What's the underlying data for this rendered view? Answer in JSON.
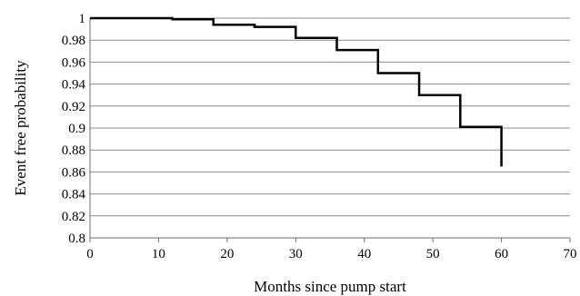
{
  "chart_data": {
    "type": "line",
    "step": true,
    "title": "",
    "xlabel": "Months since pump start",
    "ylabel": "Event free probability",
    "xlim": [
      0,
      70
    ],
    "ylim": [
      0.8,
      1
    ],
    "x_ticks": [
      0,
      10,
      20,
      30,
      40,
      50,
      60,
      70
    ],
    "y_ticks": [
      0.8,
      0.82,
      0.84,
      0.86,
      0.88,
      0.9,
      0.92,
      0.94,
      0.96,
      0.98,
      1
    ],
    "x_tick_labels": [
      "0",
      "10",
      "20",
      "30",
      "40",
      "50",
      "60",
      "70"
    ],
    "y_tick_labels": [
      "0.8",
      "0.82",
      "0.84",
      "0.86",
      "0.88",
      "0.9",
      "0.92",
      "0.94",
      "0.96",
      "0.98",
      "1"
    ],
    "grid": "horizontal",
    "legend": "none",
    "line_color": "#000000",
    "grid_color": "#8c8c8c",
    "series": [
      {
        "x": [
          0,
          12,
          18,
          24,
          30,
          36,
          42,
          48,
          54,
          60,
          60
        ],
        "y": [
          1.0,
          0.999,
          0.994,
          0.992,
          0.982,
          0.971,
          0.95,
          0.93,
          0.901,
          0.901,
          0.865
        ]
      }
    ]
  }
}
